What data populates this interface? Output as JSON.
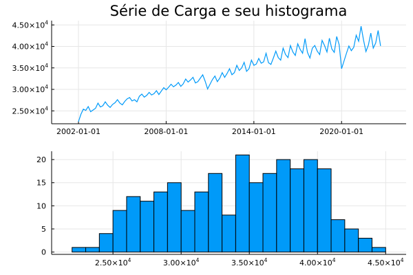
{
  "chart_data": [
    {
      "type": "line",
      "title": "Série de Carga e seu histograma",
      "xlabel": "",
      "ylabel": "",
      "x_range": [
        "2000-03-01",
        "2024-06-01"
      ],
      "ylim": [
        22000,
        46000
      ],
      "grid": true,
      "x_tick_labels": [
        "2002-01-01",
        "2008-01-01",
        "2014-01-01",
        "2020-01-01"
      ],
      "y_tick_labels": [
        {
          "mantissa": "2.50×10",
          "exp": "4"
        },
        {
          "mantissa": "3.00×10",
          "exp": "4"
        },
        {
          "mantissa": "3.50×10",
          "exp": "4"
        },
        {
          "mantissa": "4.00×10",
          "exp": "4"
        },
        {
          "mantissa": "4.50×10",
          "exp": "4"
        }
      ],
      "series": [
        {
          "color": "#009af9",
          "start": "2002-01-01",
          "step": "2 months",
          "values": [
            22500,
            24200,
            25400,
            25100,
            26000,
            24800,
            25200,
            25600,
            26800,
            25900,
            26200,
            27100,
            26300,
            25800,
            26500,
            26900,
            27600,
            26800,
            26400,
            27200,
            27800,
            28100,
            27300,
            27600,
            27100,
            28400,
            28900,
            28200,
            28600,
            29300,
            28700,
            29000,
            29700,
            28800,
            29600,
            30400,
            29900,
            30500,
            31200,
            30600,
            31000,
            31600,
            30700,
            31300,
            32400,
            31700,
            32200,
            32800,
            31500,
            31800,
            32600,
            33400,
            31900,
            30100,
            31200,
            32300,
            33100,
            31800,
            32600,
            33900,
            32800,
            33700,
            34800,
            33400,
            33900,
            35600,
            34400,
            35000,
            36300,
            34200,
            34800,
            36800,
            35600,
            35900,
            37200,
            36100,
            36400,
            38400,
            36200,
            35800,
            37300,
            38900,
            37400,
            36800,
            39600,
            38100,
            37400,
            40200,
            38700,
            37900,
            40600,
            39300,
            38400,
            41800,
            38600,
            37300,
            39600,
            40200,
            38900,
            38100,
            41400,
            40200,
            38700,
            41900,
            39400,
            38600,
            42300,
            40400,
            34800,
            36600,
            38400,
            40100,
            39000,
            39800,
            42600,
            41200,
            44700,
            41500,
            38800,
            40300,
            43100,
            39600,
            40800,
            43700,
            40100
          ]
        }
      ]
    },
    {
      "type": "bar",
      "subtype": "histogram",
      "xlabel": "",
      "ylabel": "",
      "xlim": [
        20500,
        46500
      ],
      "ylim": [
        -0.5,
        21.8
      ],
      "grid": true,
      "bin_width": 1000,
      "bin_edges": [
        22000,
        23000,
        24000,
        25000,
        26000,
        27000,
        28000,
        29000,
        30000,
        31000,
        32000,
        33000,
        34000,
        35000,
        36000,
        37000,
        38000,
        39000,
        40000,
        41000,
        42000,
        43000,
        44000,
        45000
      ],
      "values": [
        1,
        1,
        4,
        9,
        12,
        11,
        13,
        15,
        9,
        13,
        17,
        8,
        21,
        15,
        17,
        20,
        18,
        20,
        18,
        7,
        5,
        3,
        1
      ],
      "y_ticks": [
        0,
        5,
        10,
        15,
        20
      ],
      "x_tick_labels": [
        {
          "mantissa": "2.50×10",
          "exp": "4"
        },
        {
          "mantissa": "3.00×10",
          "exp": "4"
        },
        {
          "mantissa": "3.50×10",
          "exp": "4"
        },
        {
          "mantissa": "4.00×10",
          "exp": "4"
        },
        {
          "mantissa": "4.50×10",
          "exp": "4"
        }
      ]
    }
  ]
}
